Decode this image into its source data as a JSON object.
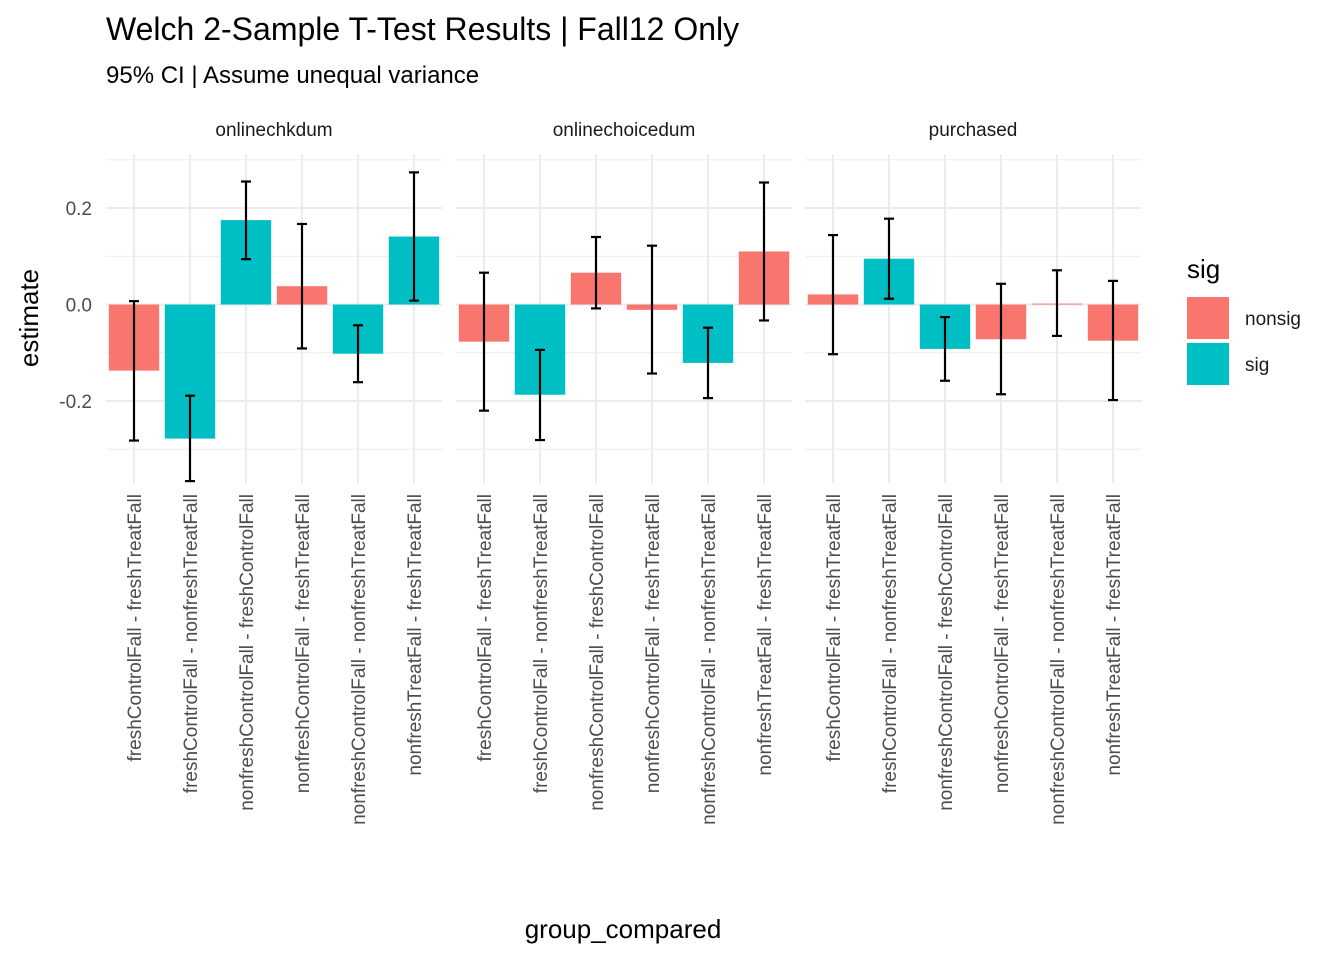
{
  "chart_data": {
    "type": "bar",
    "title": "Welch 2-Sample T-Test Results | Fall12 Only",
    "subtitle": "95% CI | Assume unequal variance",
    "xlabel": "group_compared",
    "ylabel": "estimate",
    "ylim": [
      -0.37,
      0.31
    ],
    "yticks": [
      -0.2,
      0.0,
      0.2
    ],
    "ytick_labels": [
      "-0.2",
      "0.0",
      "0.2"
    ],
    "grid": true,
    "categories": [
      "freshControlFall - freshTreatFall",
      "freshControlFall - nonfreshTreatFall",
      "nonfreshControlFall - freshControlFall",
      "nonfreshControlFall - freshTreatFall",
      "nonfreshControlFall - nonfreshTreatFall",
      "nonfreshTreatFall - freshTreatFall"
    ],
    "legend": {
      "title": "sig",
      "placement": "right",
      "entries": [
        {
          "label": "nonsig",
          "color": "#F8766D"
        },
        {
          "label": "sig",
          "color": "#00BFC4"
        }
      ]
    },
    "facets": [
      {
        "name": "onlinechkdum",
        "values": [
          -0.137,
          -0.278,
          0.175,
          0.038,
          -0.102,
          0.141
        ],
        "ci_low": [
          -0.282,
          -0.366,
          0.094,
          -0.091,
          -0.161,
          0.008
        ],
        "ci_high": [
          0.007,
          -0.189,
          0.255,
          0.167,
          -0.043,
          0.274
        ],
        "sig": [
          "nonsig",
          "sig",
          "sig",
          "nonsig",
          "sig",
          "sig"
        ]
      },
      {
        "name": "onlinechoicedum",
        "values": [
          -0.077,
          -0.187,
          0.066,
          -0.011,
          -0.121,
          0.11
        ],
        "ci_low": [
          -0.22,
          -0.281,
          -0.008,
          -0.143,
          -0.194,
          -0.033
        ],
        "ci_high": [
          0.066,
          -0.094,
          0.14,
          0.122,
          -0.048,
          0.253
        ],
        "sig": [
          "nonsig",
          "sig",
          "nonsig",
          "nonsig",
          "sig",
          "nonsig"
        ]
      },
      {
        "name": "purchased",
        "values": [
          0.021,
          0.095,
          -0.092,
          -0.072,
          0.002,
          -0.075
        ],
        "ci_low": [
          -0.103,
          0.012,
          -0.158,
          -0.186,
          -0.065,
          -0.198
        ],
        "ci_high": [
          0.144,
          0.178,
          -0.026,
          0.043,
          0.071,
          0.049
        ],
        "sig": [
          "nonsig",
          "sig",
          "sig",
          "nonsig",
          "nonsig",
          "nonsig"
        ]
      }
    ]
  }
}
